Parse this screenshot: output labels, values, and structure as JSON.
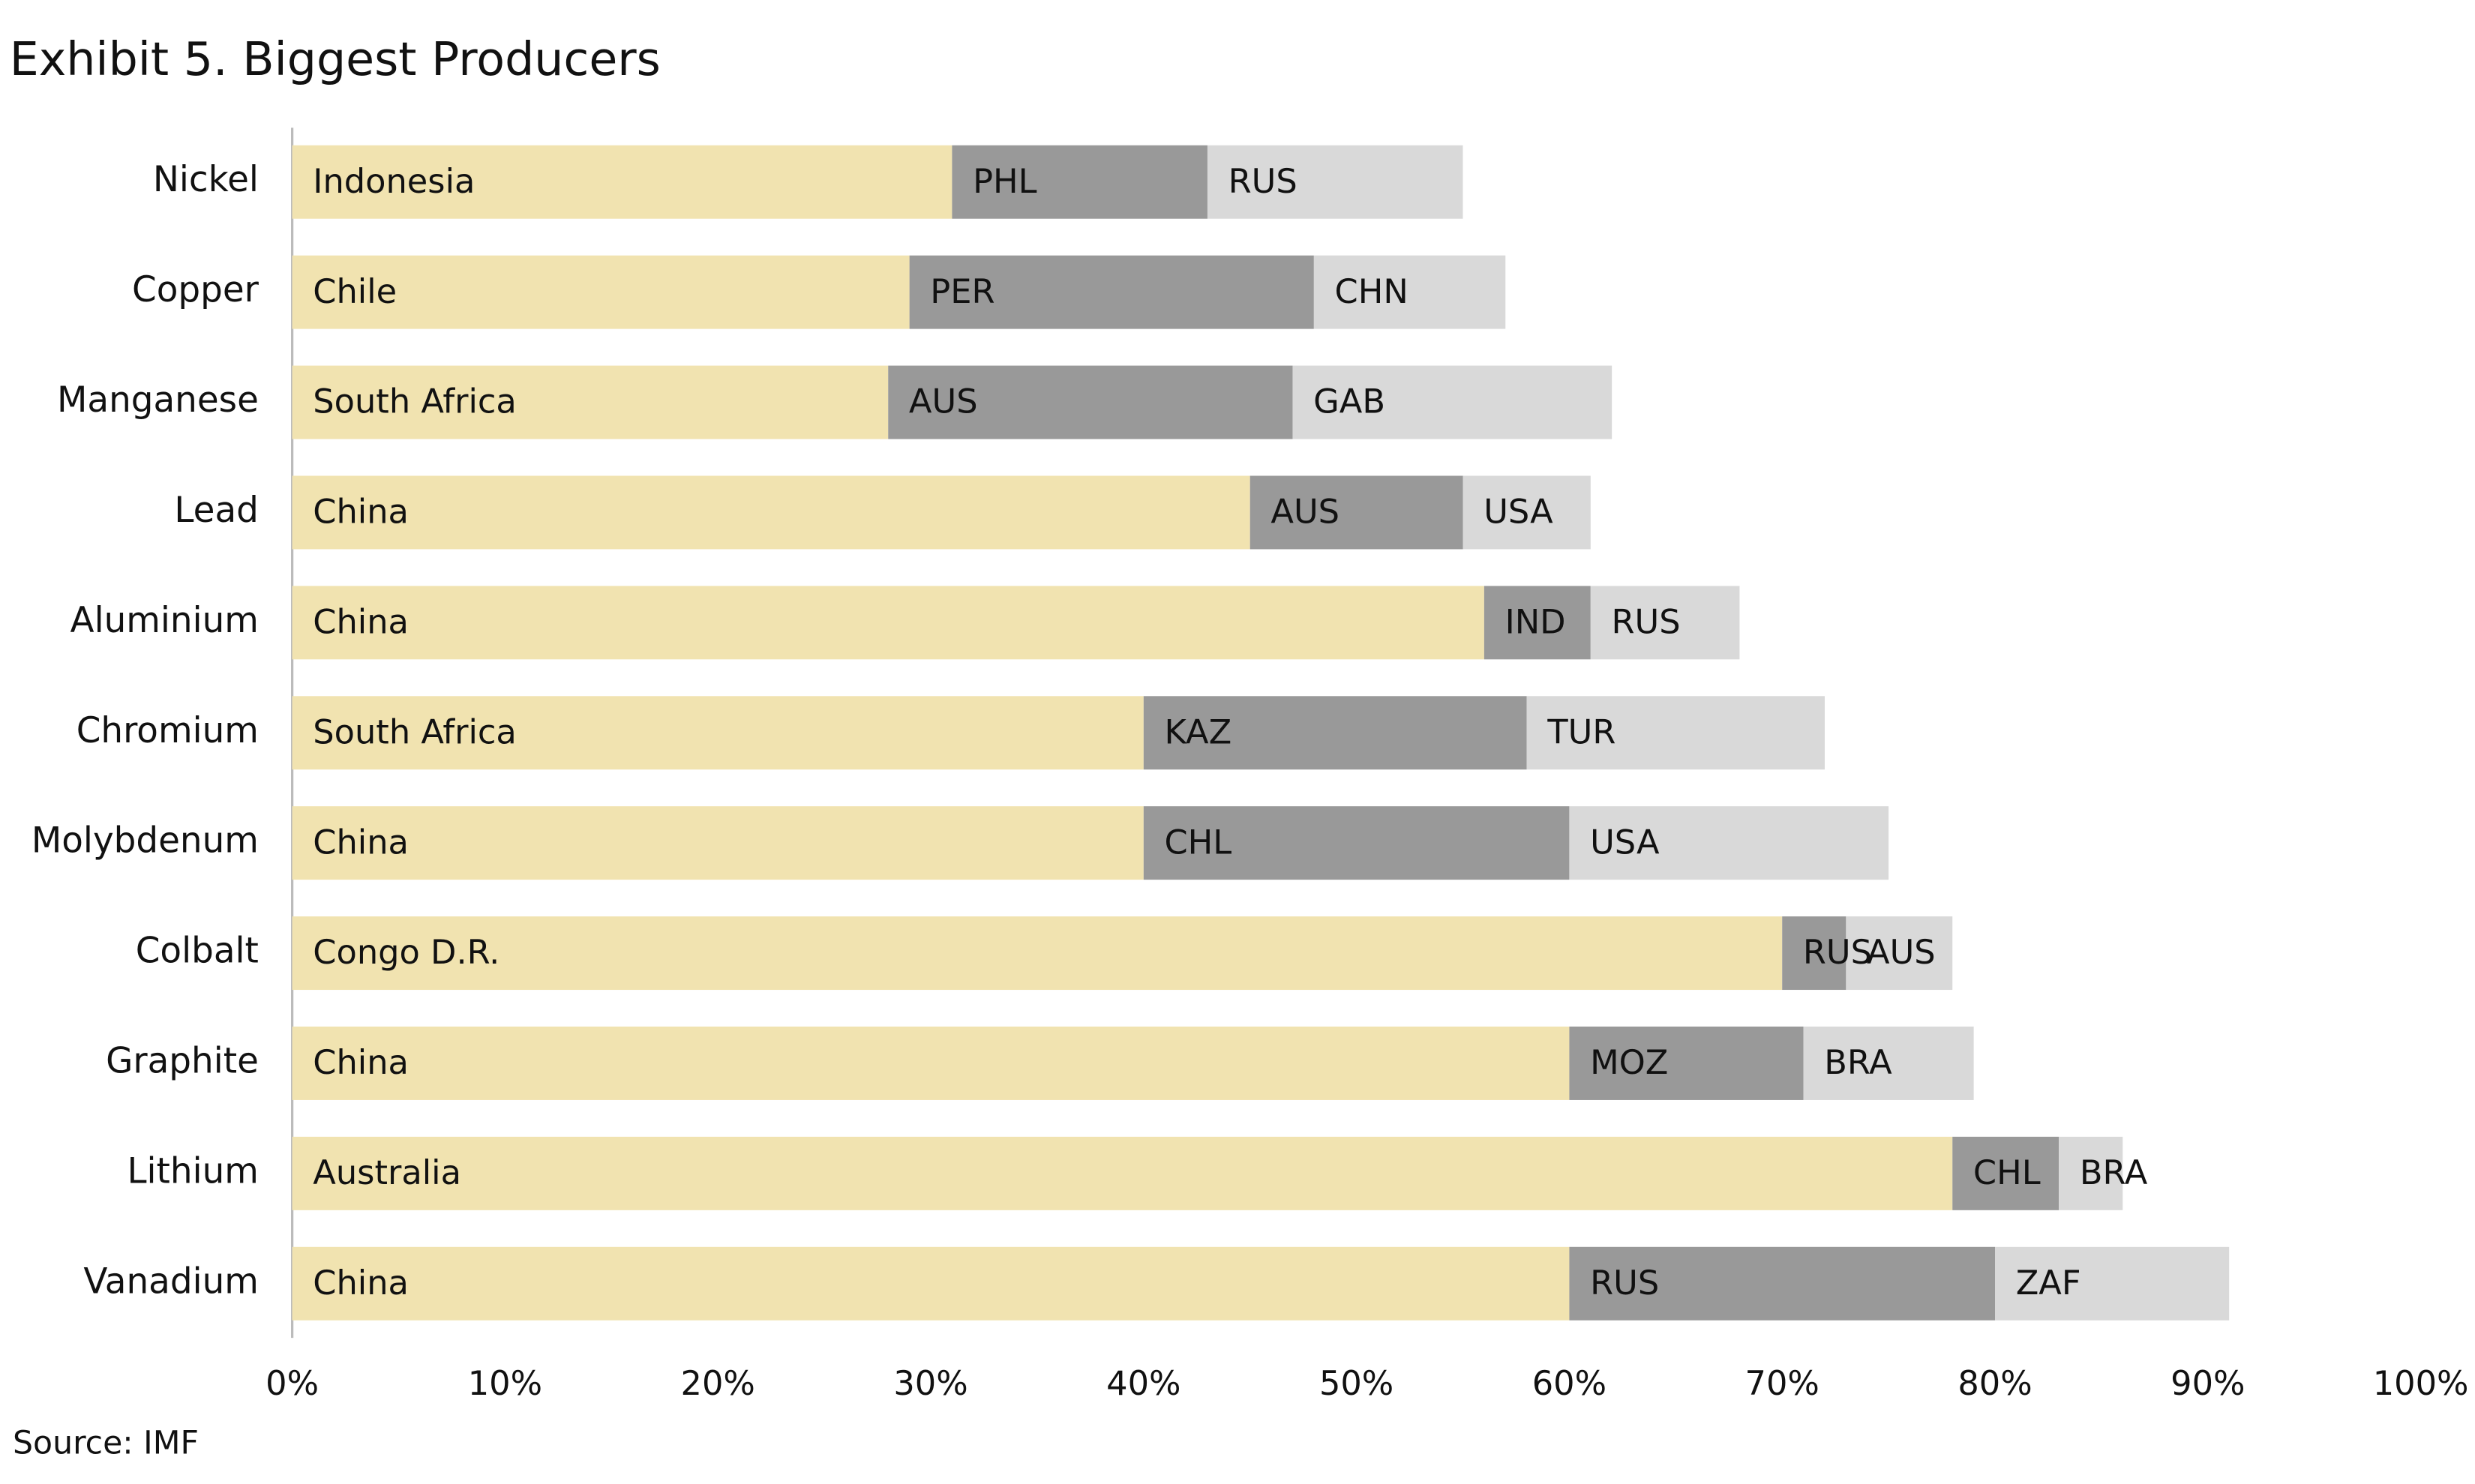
{
  "chart_data": {
    "type": "stacked-bar-horizontal",
    "title": "Exhibit 5. Biggest Producers",
    "source": "Source: IMF",
    "categories": [
      "Nickel",
      "Copper",
      "Manganese",
      "Lead",
      "Aluminium",
      "Chromium",
      "Molybdenum",
      "Colbalt",
      "Graphite",
      "Lithium",
      "Vanadium"
    ],
    "series": [
      {
        "color": "#f1e3b0",
        "values": [
          31,
          29,
          28,
          45,
          56,
          40,
          40,
          70,
          60,
          78,
          60
        ],
        "segment_labels": [
          "Indonesia",
          "Chile",
          "South Africa",
          "China",
          "China",
          "South Africa",
          "China",
          "Congo D.R.",
          "China",
          "Australia",
          "China"
        ]
      },
      {
        "color": "#999999",
        "values": [
          12,
          19,
          19,
          10,
          5,
          18,
          20,
          3,
          11,
          5,
          20
        ],
        "segment_labels": [
          "PHL",
          "PER",
          "AUS",
          "AUS",
          "IND",
          "KAZ",
          "CHL",
          "RUS",
          "MOZ",
          "CHL",
          "RUS"
        ]
      },
      {
        "color": "#d9d9d9",
        "values": [
          12,
          9,
          15,
          6,
          7,
          14,
          15,
          5,
          8,
          3,
          11
        ],
        "segment_labels": [
          "RUS",
          "CHN",
          "GAB",
          "USA",
          "RUS",
          "TUR",
          "USA",
          "AUS",
          "BRA",
          "BRA",
          "ZAF"
        ]
      }
    ],
    "xlim": [
      0,
      100
    ],
    "xticks": [
      {
        "value": 0,
        "label": "0%"
      },
      {
        "value": 10,
        "label": "10%"
      },
      {
        "value": 20,
        "label": "20%"
      },
      {
        "value": 30,
        "label": "30%"
      },
      {
        "value": 40,
        "label": "40%"
      },
      {
        "value": 50,
        "label": "50%"
      },
      {
        "value": 60,
        "label": "60%"
      },
      {
        "value": 70,
        "label": "70%"
      },
      {
        "value": 80,
        "label": "80%"
      },
      {
        "value": 90,
        "label": "90%"
      },
      {
        "value": 100,
        "label": "100%"
      }
    ],
    "grid": false
  }
}
